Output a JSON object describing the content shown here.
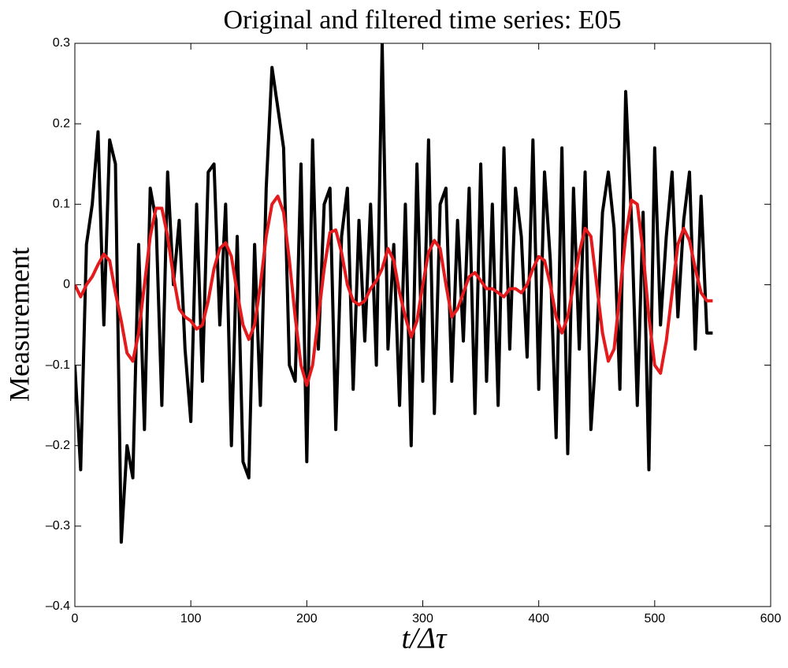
{
  "chart_data": {
    "type": "line",
    "title": "Original and filtered time series: E05",
    "xlabel": "t/Δτ",
    "ylabel": "Measurement",
    "x": [
      0,
      5,
      10,
      15,
      20,
      25,
      30,
      35,
      40,
      45,
      50,
      55,
      60,
      65,
      70,
      75,
      80,
      85,
      90,
      95,
      100,
      105,
      110,
      115,
      120,
      125,
      130,
      135,
      140,
      145,
      150,
      155,
      160,
      165,
      170,
      175,
      180,
      185,
      190,
      195,
      200,
      205,
      210,
      215,
      220,
      225,
      230,
      235,
      240,
      245,
      250,
      255,
      260,
      265,
      270,
      275,
      280,
      285,
      290,
      295,
      300,
      305,
      310,
      315,
      320,
      325,
      330,
      335,
      340,
      345,
      350,
      355,
      360,
      365,
      370,
      375,
      380,
      385,
      390,
      395,
      400,
      405,
      410,
      415,
      420,
      425,
      430,
      435,
      440,
      445,
      450,
      455,
      460,
      465,
      470,
      475,
      480,
      485,
      490,
      495,
      500,
      505,
      510,
      515,
      520,
      525,
      530,
      535,
      540,
      545,
      550
    ],
    "series": [
      {
        "color": "#000000",
        "values": [
          -0.1,
          -0.23,
          0.05,
          0.1,
          0.19,
          -0.05,
          0.18,
          0.15,
          -0.32,
          -0.2,
          -0.24,
          0.05,
          -0.18,
          0.12,
          0.08,
          -0.15,
          0.14,
          0,
          0.08,
          -0.08,
          -0.17,
          0.1,
          -0.12,
          0.14,
          0.15,
          -0.05,
          0.1,
          -0.2,
          0.06,
          -0.22,
          -0.24,
          0.05,
          -0.15,
          0.12,
          0.27,
          0.22,
          0.17,
          -0.1,
          -0.12,
          0.15,
          -0.22,
          0.18,
          -0.08,
          0.1,
          0.12,
          -0.18,
          0.06,
          0.12,
          -0.13,
          0.08,
          -0.07,
          0.1,
          -0.1,
          0.3,
          -0.08,
          0.05,
          -0.15,
          0.1,
          -0.2,
          0.15,
          -0.12,
          0.18,
          -0.16,
          0.1,
          0.12,
          -0.12,
          0.08,
          -0.07,
          0.12,
          -0.16,
          0.15,
          -0.12,
          0.1,
          -0.15,
          0.17,
          -0.08,
          0.12,
          0.06,
          -0.09,
          0.18,
          -0.13,
          0.14,
          0.03,
          -0.19,
          0.17,
          -0.21,
          0.12,
          -0.08,
          0.14,
          -0.18,
          -0.07,
          0.09,
          0.14,
          0.07,
          -0.13,
          0.24,
          0.08,
          -0.15,
          0.09,
          -0.23,
          0.17,
          -0.05,
          0.06,
          0.14,
          -0.04,
          0.08,
          0.14,
          -0.08,
          0.11,
          -0.06,
          -0.06
        ]
      },
      {
        "color": "#e41a1c",
        "values": [
          0,
          -0.015,
          0,
          0.01,
          0.025,
          0.038,
          0.03,
          -0.01,
          -0.045,
          -0.085,
          -0.095,
          -0.06,
          0,
          0.06,
          0.095,
          0.095,
          0.06,
          0.01,
          -0.03,
          -0.04,
          -0.045,
          -0.055,
          -0.05,
          -0.02,
          0.02,
          0.045,
          0.052,
          0.035,
          -0.01,
          -0.05,
          -0.068,
          -0.05,
          0,
          0.06,
          0.1,
          0.11,
          0.09,
          0.03,
          -0.04,
          -0.1,
          -0.125,
          -0.1,
          -0.04,
          0.02,
          0.065,
          0.068,
          0.04,
          0,
          -0.02,
          -0.025,
          -0.02,
          -0.005,
          0.005,
          0.02,
          0.045,
          0.03,
          -0.01,
          -0.04,
          -0.065,
          -0.045,
          0,
          0.04,
          0.055,
          0.045,
          0,
          -0.04,
          -0.03,
          -0.01,
          0.01,
          0.015,
          0.005,
          -0.005,
          -0.005,
          -0.01,
          -0.015,
          -0.005,
          -0.005,
          -0.01,
          0,
          0.02,
          0.035,
          0.03,
          0,
          -0.04,
          -0.06,
          -0.04,
          0,
          0.04,
          0.07,
          0.06,
          0,
          -0.06,
          -0.095,
          -0.08,
          -0.01,
          0.06,
          0.105,
          0.1,
          0.04,
          -0.04,
          -0.1,
          -0.11,
          -0.07,
          -0.01,
          0.05,
          0.07,
          0.055,
          0.02,
          -0.01,
          -0.02,
          -0.02
        ]
      }
    ],
    "xlim": [
      0,
      600
    ],
    "xticks": [
      0,
      100,
      200,
      300,
      400,
      500,
      600
    ],
    "ylim": [
      -0.4,
      0.3
    ],
    "yticks": [
      {
        "value": -0.4,
        "label": "–0.4"
      },
      {
        "value": -0.3,
        "label": "–0.3"
      },
      {
        "value": -0.2,
        "label": "–0.2"
      },
      {
        "value": -0.1,
        "label": "–0.1"
      },
      0,
      0.1,
      0.2,
      0.3
    ],
    "grid": false
  }
}
